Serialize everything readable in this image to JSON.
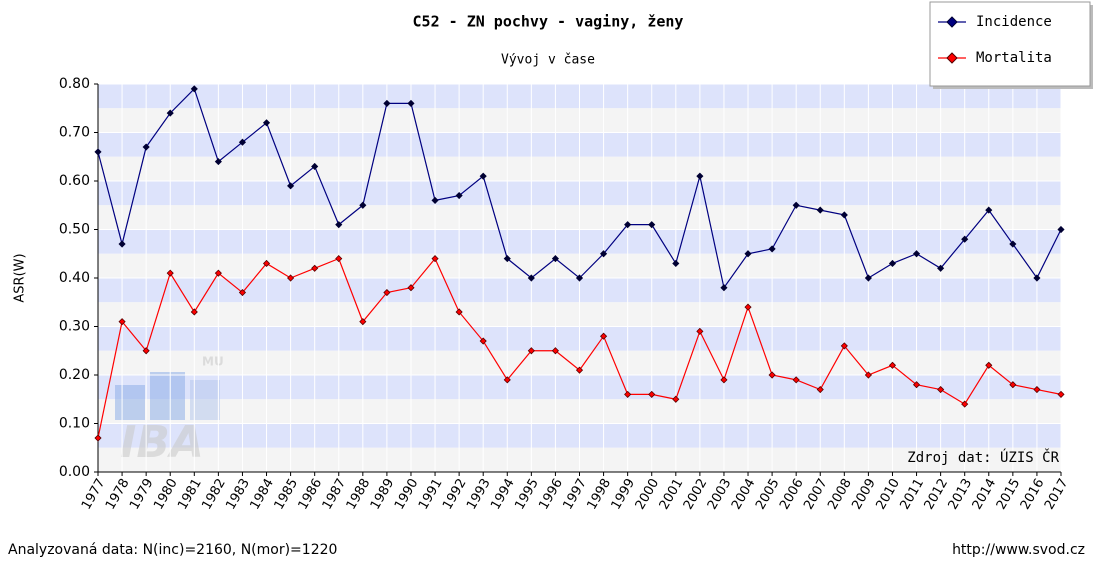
{
  "chart_data": {
    "type": "line",
    "title": "C52 - ZN pochvy - vaginy, ženy",
    "subtitle": "Vývoj v čase",
    "ylabel": "ASR(W)",
    "annotation": "Zdroj dat: ÚZIS ČR",
    "footer_left": "Analyzovaná data: N(inc)=2160, N(mor)=1220",
    "footer_right": "http://www.svod.cz",
    "logo": {
      "text": "IBA",
      "superscript": "MU"
    },
    "x": [
      1977,
      1978,
      1979,
      1980,
      1981,
      1982,
      1983,
      1984,
      1985,
      1986,
      1987,
      1988,
      1989,
      1990,
      1991,
      1992,
      1993,
      1994,
      1995,
      1996,
      1997,
      1998,
      1999,
      2000,
      2001,
      2002,
      2003,
      2004,
      2005,
      2006,
      2007,
      2008,
      2009,
      2010,
      2011,
      2012,
      2013,
      2014,
      2015,
      2016,
      2017
    ],
    "xlim": [
      1977,
      2017
    ],
    "xticks": [
      1977,
      1978,
      1979,
      1980,
      1981,
      1982,
      1983,
      1984,
      1985,
      1986,
      1987,
      1988,
      1989,
      1990,
      1991,
      1992,
      1993,
      1994,
      1995,
      1996,
      1997,
      1998,
      1999,
      2000,
      2001,
      2002,
      2003,
      2004,
      2005,
      2006,
      2007,
      2008,
      2009,
      2010,
      2011,
      2012,
      2013,
      2014,
      2015,
      2016,
      2017
    ],
    "ylim": [
      0,
      0.8
    ],
    "yticks": [
      {
        "value": 0,
        "label": "0.00"
      },
      {
        "value": 0.1,
        "label": "0.10"
      },
      {
        "value": 0.2,
        "label": "0.20"
      },
      {
        "value": 0.3,
        "label": "0.30"
      },
      {
        "value": 0.4,
        "label": "0.40"
      },
      {
        "value": 0.5,
        "label": "0.50"
      },
      {
        "value": 0.6,
        "label": "0.60"
      },
      {
        "value": 0.7,
        "label": "0.70"
      },
      {
        "value": 0.8,
        "label": "0.80"
      }
    ],
    "grid": true,
    "legend": "top-right",
    "series": [
      {
        "name": "Incidence",
        "color": "#000080",
        "values": [
          0.66,
          0.47,
          0.67,
          0.74,
          0.79,
          0.64,
          0.68,
          0.72,
          0.59,
          0.63,
          0.51,
          0.55,
          0.76,
          0.76,
          0.56,
          0.57,
          0.61,
          0.44,
          0.4,
          0.44,
          0.4,
          0.45,
          0.51,
          0.51,
          0.43,
          0.61,
          0.38,
          0.45,
          0.46,
          0.55,
          0.54,
          0.53,
          0.4,
          0.43,
          0.45,
          0.42,
          0.48,
          0.54,
          0.47,
          0.4,
          0.5
        ]
      },
      {
        "name": "Mortalita",
        "color": "#ff0000",
        "values": [
          0.07,
          0.31,
          0.25,
          0.41,
          0.33,
          0.41,
          0.37,
          0.43,
          0.4,
          0.42,
          0.44,
          0.31,
          0.37,
          0.38,
          0.44,
          0.33,
          0.27,
          0.19,
          0.25,
          0.25,
          0.21,
          0.28,
          0.16,
          0.16,
          0.15,
          0.29,
          0.19,
          0.34,
          0.2,
          0.19,
          0.17,
          0.26,
          0.2,
          0.22,
          0.18,
          0.17,
          0.14,
          0.22,
          0.18,
          0.17,
          0.16
        ]
      }
    ]
  }
}
